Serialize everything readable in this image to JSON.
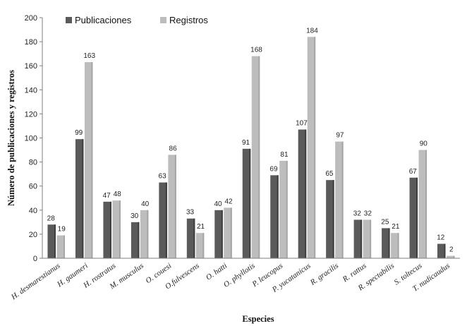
{
  "chart_data": {
    "type": "bar",
    "title": "",
    "xlabel": "Especies",
    "ylabel": "Número de publicaciones  y registros",
    "ylim": [
      0,
      200
    ],
    "yticks": [
      "0",
      "20",
      "40",
      "60",
      "80",
      "100",
      "120",
      "140",
      "160",
      "180",
      "200"
    ],
    "grid": false,
    "legend_position": "top-left",
    "categories": [
      "H. desmarestianus",
      "H. gaumeri",
      "H. rostratus",
      "M. musculus",
      "O. couesi",
      "O.fulvescens",
      "O. hatti",
      "O. phyllotis",
      "P. leucopus",
      "P. yucatanicus",
      "R. gracilis",
      "R. rattus",
      "R. spectabilis",
      "S. toltecus",
      "T. nudicaudus"
    ],
    "series": [
      {
        "name": "Publicaciones",
        "color": "#5a5a5a",
        "values": [
          28,
          99,
          47,
          30,
          63,
          33,
          40,
          91,
          69,
          107,
          65,
          32,
          25,
          67,
          12
        ]
      },
      {
        "name": "Registros",
        "color": "#bdbdbd",
        "values": [
          19,
          163,
          48,
          40,
          86,
          21,
          42,
          168,
          81,
          184,
          97,
          32,
          21,
          90,
          2
        ]
      }
    ]
  }
}
